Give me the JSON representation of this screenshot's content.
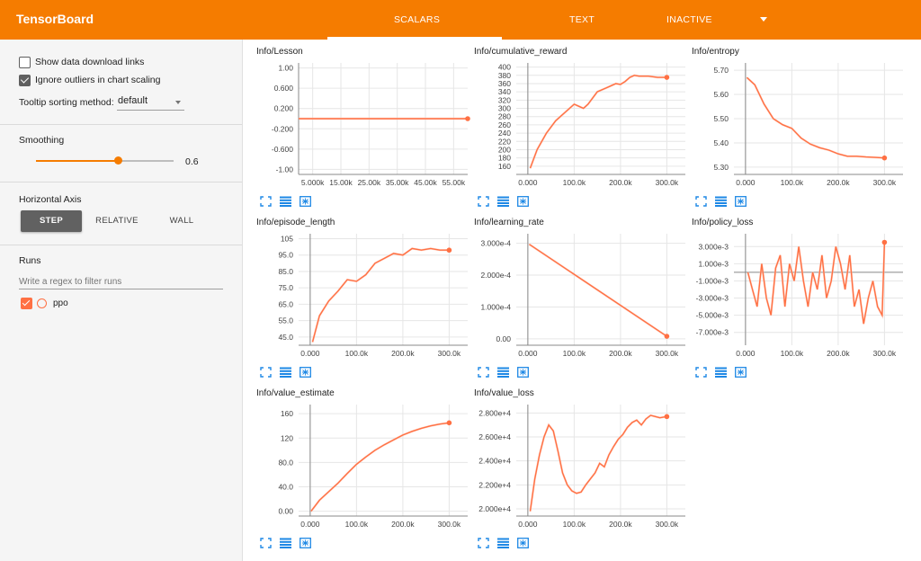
{
  "header": {
    "brand": "TensorBoard",
    "tabs": [
      {
        "label": "SCALARS",
        "active": true
      },
      {
        "label": "TEXT",
        "active": false
      },
      {
        "label": "INACTIVE",
        "active": false
      }
    ]
  },
  "sidebar": {
    "show_download": {
      "label": "Show data download links",
      "checked": false
    },
    "ignore_outliers": {
      "label": "Ignore outliers in chart scaling",
      "checked": true
    },
    "tooltip": {
      "label": "Tooltip sorting method:",
      "value": "default"
    },
    "smoothing": {
      "title": "Smoothing",
      "value": 0.6,
      "value_label": "0.6"
    },
    "horizontal_axis": {
      "title": "Horizontal Axis",
      "options": [
        "STEP",
        "RELATIVE",
        "WALL"
      ],
      "selected": "STEP"
    },
    "runs": {
      "title": "Runs",
      "placeholder": "Write a regex to filter runs",
      "items": [
        {
          "name": "ppo",
          "checked": true
        }
      ]
    }
  },
  "colors": {
    "accent": "#f57c00",
    "series": "#ff7043",
    "series_raw": "#ffccbc"
  },
  "chart_data": [
    {
      "type": "line",
      "title": "Info/Lesson",
      "xticks": [
        "5.000k",
        "15.00k",
        "25.00k",
        "35.00k",
        "45.00k",
        "55.00k"
      ],
      "yticks": [
        "1.00",
        "0.600",
        "0.200",
        "-0.200",
        "-0.600",
        "-1.00"
      ],
      "xlim": [
        0,
        60000
      ],
      "ylim": [
        -1.1,
        1.1
      ],
      "series": [
        {
          "x": [
            0,
            60000
          ],
          "y": [
            0,
            0
          ]
        }
      ]
    },
    {
      "type": "line",
      "title": "Info/cumulative_reward",
      "xticks": [
        "0.000",
        "100.0k",
        "200.0k",
        "300.0k"
      ],
      "yticks": [
        "400",
        "380",
        "360",
        "340",
        "320",
        "300",
        "280",
        "260",
        "240",
        "220",
        "200",
        "180",
        "160"
      ],
      "xlim": [
        -25000,
        340000
      ],
      "ylim": [
        140,
        410
      ],
      "series": [
        {
          "x": [
            5000,
            20000,
            40000,
            60000,
            80000,
            100000,
            110000,
            120000,
            130000,
            150000,
            170000,
            180000,
            190000,
            200000,
            210000,
            220000,
            230000,
            240000,
            260000,
            280000,
            300000
          ],
          "y": [
            155,
            200,
            240,
            270,
            290,
            310,
            305,
            300,
            310,
            340,
            350,
            355,
            360,
            358,
            365,
            375,
            380,
            378,
            378,
            375,
            375
          ]
        }
      ]
    },
    {
      "type": "line",
      "title": "Info/entropy",
      "xticks": [
        "0.000",
        "100.0k",
        "200.0k",
        "300.0k"
      ],
      "yticks": [
        "5.70",
        "5.60",
        "5.50",
        "5.40",
        "5.30"
      ],
      "xlim": [
        -25000,
        340000
      ],
      "ylim": [
        5.27,
        5.73
      ],
      "series": [
        {
          "x": [
            3000,
            20000,
            40000,
            60000,
            80000,
            100000,
            120000,
            140000,
            160000,
            180000,
            200000,
            220000,
            240000,
            260000,
            280000,
            300000
          ],
          "y": [
            5.67,
            5.64,
            5.56,
            5.5,
            5.475,
            5.46,
            5.42,
            5.395,
            5.38,
            5.37,
            5.355,
            5.345,
            5.345,
            5.342,
            5.34,
            5.338
          ]
        }
      ]
    },
    {
      "type": "line",
      "title": "Info/episode_length",
      "xticks": [
        "0.000",
        "100.0k",
        "200.0k",
        "300.0k"
      ],
      "yticks": [
        "105",
        "95.0",
        "85.0",
        "75.0",
        "65.0",
        "55.0",
        "45.0"
      ],
      "xlim": [
        -25000,
        340000
      ],
      "ylim": [
        40,
        108
      ],
      "series": [
        {
          "x": [
            5000,
            20000,
            40000,
            60000,
            80000,
            100000,
            120000,
            140000,
            160000,
            180000,
            200000,
            220000,
            240000,
            260000,
            280000,
            300000
          ],
          "y": [
            42,
            58,
            67,
            73,
            80,
            79,
            83,
            90,
            93,
            96,
            95,
            99,
            98,
            99,
            98,
            98
          ]
        }
      ]
    },
    {
      "type": "line",
      "title": "Info/learning_rate",
      "xticks": [
        "0.000",
        "100.0k",
        "200.0k",
        "300.0k"
      ],
      "yticks": [
        "3.000e-4",
        "2.000e-4",
        "1.000e-4",
        "0.00"
      ],
      "xlim": [
        -25000,
        340000
      ],
      "ylim": [
        -2e-05,
        0.00033
      ],
      "series": [
        {
          "x": [
            3000,
            300000
          ],
          "y": [
            0.000297,
            8e-06
          ]
        }
      ]
    },
    {
      "type": "line",
      "title": "Info/policy_loss",
      "xticks": [
        "0.000",
        "100.0k",
        "200.0k",
        "300.0k"
      ],
      "yticks": [
        "3.000e-3",
        "1.000e-3",
        "-1.000e-3",
        "-3.000e-3",
        "-5.000e-3",
        "-7.000e-3"
      ],
      "xlim": [
        -25000,
        340000
      ],
      "ylim": [
        -0.0085,
        0.0045
      ],
      "series": [
        {
          "x": [
            5000,
            15000,
            25000,
            35000,
            45000,
            55000,
            65000,
            75000,
            85000,
            95000,
            105000,
            115000,
            125000,
            135000,
            145000,
            155000,
            165000,
            175000,
            185000,
            195000,
            205000,
            215000,
            225000,
            235000,
            245000,
            255000,
            265000,
            275000,
            285000,
            295000,
            300000
          ],
          "y": [
            0.0,
            -0.002,
            -0.004,
            0.001,
            -0.003,
            -0.005,
            0.0005,
            0.002,
            -0.004,
            0.001,
            -0.001,
            0.003,
            -0.001,
            -0.004,
            0.0,
            -0.002,
            0.002,
            -0.003,
            -0.001,
            0.003,
            0.001,
            -0.002,
            0.002,
            -0.004,
            -0.002,
            -0.006,
            -0.003,
            -0.001,
            -0.004,
            -0.005,
            0.0035
          ]
        }
      ]
    },
    {
      "type": "line",
      "title": "Info/value_estimate",
      "xticks": [
        "0.000",
        "100.0k",
        "200.0k",
        "300.0k"
      ],
      "yticks": [
        "160",
        "120",
        "80.0",
        "40.0",
        "0.00"
      ],
      "xlim": [
        -25000,
        340000
      ],
      "ylim": [
        -8,
        175
      ],
      "series": [
        {
          "x": [
            2000,
            20000,
            40000,
            60000,
            80000,
            100000,
            120000,
            140000,
            160000,
            180000,
            200000,
            220000,
            240000,
            260000,
            280000,
            300000
          ],
          "y": [
            0,
            18,
            32,
            46,
            62,
            77,
            89,
            100,
            109,
            117,
            125,
            131,
            136,
            140,
            143,
            145
          ]
        }
      ]
    },
    {
      "type": "line",
      "title": "Info/value_loss",
      "xticks": [
        "0.000",
        "100.0k",
        "200.0k",
        "300.0k"
      ],
      "yticks": [
        "2.800e+4",
        "2.600e+4",
        "2.400e+4",
        "2.200e+4",
        "2.000e+4"
      ],
      "xlim": [
        -25000,
        340000
      ],
      "ylim": [
        19400,
        28700
      ],
      "series": [
        {
          "x": [
            5000,
            15000,
            25000,
            35000,
            45000,
            55000,
            65000,
            75000,
            85000,
            95000,
            105000,
            115000,
            125000,
            135000,
            145000,
            155000,
            165000,
            175000,
            185000,
            195000,
            205000,
            215000,
            225000,
            235000,
            245000,
            255000,
            265000,
            275000,
            285000,
            300000
          ],
          "y": [
            19800,
            22500,
            24500,
            26000,
            27000,
            26500,
            24800,
            23000,
            22000,
            21500,
            21300,
            21400,
            22000,
            22500,
            23000,
            23800,
            23500,
            24500,
            25200,
            25800,
            26200,
            26800,
            27200,
            27400,
            27000,
            27500,
            27800,
            27700,
            27600,
            27700
          ]
        }
      ]
    }
  ]
}
